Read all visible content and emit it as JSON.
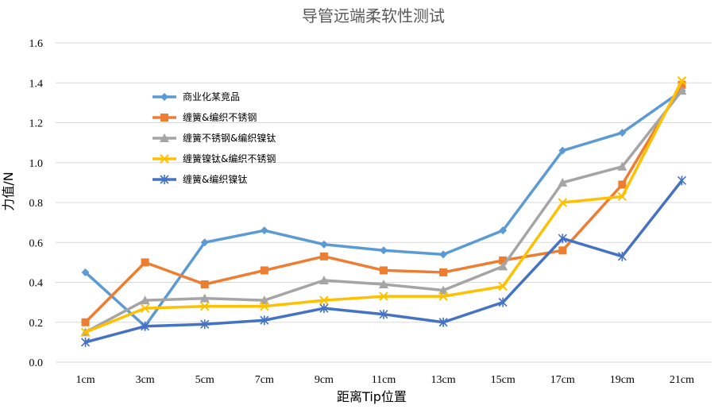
{
  "chart_data": {
    "type": "line",
    "title": "导管远端柔软性测试",
    "xlabel": "距离Tip位置",
    "ylabel": "力值/N",
    "categories": [
      "1cm",
      "3cm",
      "5cm",
      "7cm",
      "9cm",
      "11cm",
      "13cm",
      "15cm",
      "17cm",
      "19cm",
      "21cm"
    ],
    "ylim": [
      0,
      1.6
    ],
    "yticks": [
      "0.0",
      "0.2",
      "0.4",
      "0.6",
      "0.8",
      "1.0",
      "1.2",
      "1.4",
      "1.6"
    ],
    "grid": true,
    "legend_position": "top-left",
    "series": [
      {
        "name": "商业化某竞品",
        "color": "#5B9BD5",
        "marker": "diamond",
        "values": [
          0.45,
          0.18,
          0.6,
          0.66,
          0.59,
          0.56,
          0.54,
          0.66,
          1.06,
          1.15,
          1.36
        ]
      },
      {
        "name": "缠簧&编织不锈钢",
        "color": "#ED7D31",
        "marker": "square",
        "values": [
          0.2,
          0.5,
          0.39,
          0.46,
          0.53,
          0.46,
          0.45,
          0.51,
          0.56,
          0.89,
          1.39
        ]
      },
      {
        "name": "缠簧不锈钢&编织镍钛",
        "color": "#A5A5A5",
        "marker": "triangle",
        "values": [
          0.15,
          0.31,
          0.32,
          0.31,
          0.41,
          0.39,
          0.36,
          0.48,
          0.9,
          0.98,
          1.36
        ]
      },
      {
        "name": "缠簧镍钛&编织不锈钢",
        "color": "#FFC000",
        "marker": "x",
        "values": [
          0.15,
          0.27,
          0.28,
          0.28,
          0.31,
          0.33,
          0.33,
          0.38,
          0.8,
          0.83,
          1.41
        ]
      },
      {
        "name": "缠簧&编织镍钛",
        "color": "#4472C4",
        "marker": "star",
        "values": [
          0.1,
          0.18,
          0.19,
          0.21,
          0.27,
          0.24,
          0.2,
          0.3,
          0.62,
          0.53,
          0.91
        ]
      }
    ]
  }
}
